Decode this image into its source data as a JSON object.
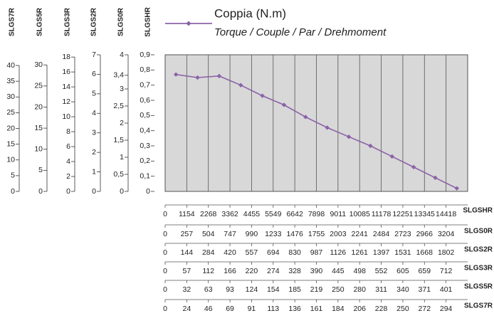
{
  "chart_data": {
    "type": "line",
    "subtitle": "Torque / Couple / Par / Drehmoment",
    "series": [
      {
        "name": "Coppia (N.m)",
        "color": "#8b62a8",
        "values": [
          0.77,
          0.75,
          0.76,
          0.7,
          0.63,
          0.57,
          0.49,
          0.42,
          0.36,
          0.3,
          0.23,
          0.16,
          0.09,
          0.02
        ]
      }
    ],
    "grid": true,
    "y_axes": [
      {
        "name": "SLGS7R",
        "ylim": [
          0,
          43.4
        ],
        "yticks": [
          0,
          5,
          10,
          15,
          20,
          25,
          30,
          35,
          40
        ]
      },
      {
        "name": "SLGS5R",
        "ylim": [
          0,
          32.4
        ],
        "yticks": [
          0,
          5,
          10,
          15,
          20,
          25,
          30
        ]
      },
      {
        "name": "SLGS3R",
        "ylim": [
          0,
          18.3
        ],
        "yticks": [
          0,
          2,
          4,
          6,
          8,
          10,
          12,
          14,
          16,
          18
        ]
      },
      {
        "name": "SLGS2R",
        "ylim": [
          0,
          7
        ],
        "yticks": [
          0,
          1,
          2,
          3,
          4,
          5,
          6,
          7
        ]
      },
      {
        "name": "SLGS0R",
        "ylim": [
          0,
          4
        ],
        "yticks": [
          0,
          {
            "value": 0.5,
            "label": "0,5"
          },
          1,
          {
            "value": 1.5,
            "label": "1,5"
          },
          2,
          {
            "value": 2.5,
            "label": "2,5"
          },
          3,
          {
            "value": 3.4,
            "label": "3,4"
          },
          4
        ]
      },
      {
        "name": "SLGSHR",
        "ylim": [
          0,
          0.9
        ],
        "yticks": [
          0,
          {
            "value": 0.1,
            "label": "0,1"
          },
          {
            "value": 0.2,
            "label": "0,2"
          },
          {
            "value": 0.3,
            "label": "0,3"
          },
          {
            "value": 0.4,
            "label": "0,4"
          },
          {
            "value": 0.5,
            "label": "0,5"
          },
          {
            "value": 0.6,
            "label": "0,6"
          },
          {
            "value": 0.7,
            "label": "0,7"
          },
          {
            "value": 0.8,
            "label": "0,8"
          },
          {
            "value": 0.9,
            "label": "0,9"
          }
        ]
      }
    ],
    "x_axes": [
      {
        "name": "SLGSHR",
        "categories": [
          0,
          1154,
          2268,
          3362,
          4455,
          5549,
          6642,
          7898,
          9011,
          10085,
          11178,
          12251,
          13345,
          14418
        ]
      },
      {
        "name": "SLGS0R",
        "categories": [
          0,
          257,
          504,
          747,
          990,
          1233,
          1476,
          1755,
          2003,
          2241,
          2484,
          2723,
          2966,
          3204
        ]
      },
      {
        "name": "SLGS2R",
        "categories": [
          0,
          144,
          284,
          420,
          557,
          694,
          830,
          987,
          1126,
          1261,
          1397,
          1531,
          1668,
          1802
        ]
      },
      {
        "name": "SLGS3R",
        "categories": [
          0,
          57,
          112,
          166,
          220,
          274,
          328,
          390,
          445,
          498,
          552,
          605,
          659,
          712
        ]
      },
      {
        "name": "SLGS5R",
        "categories": [
          0,
          32,
          63,
          93,
          124,
          154,
          185,
          219,
          250,
          280,
          311,
          340,
          371,
          401
        ]
      },
      {
        "name": "SLGS7R",
        "categories": [
          0,
          24,
          46,
          69,
          91,
          113,
          136,
          161,
          184,
          206,
          228,
          250,
          272,
          294
        ]
      }
    ]
  }
}
